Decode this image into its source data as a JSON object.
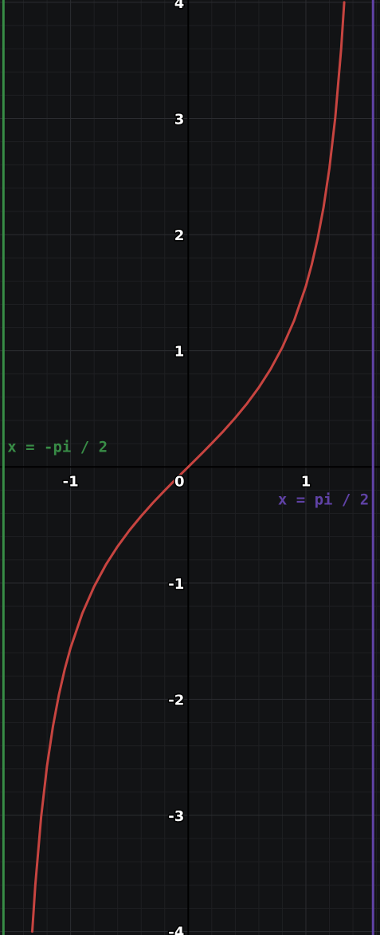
{
  "chart_data": {
    "type": "line",
    "title": "",
    "xlabel": "",
    "ylabel": "",
    "xlim": [
      -1.6,
      1.63
    ],
    "ylim": [
      -4.03,
      4.02
    ],
    "grid": true,
    "x_ticks": [
      {
        "value": -1,
        "label": "-1"
      },
      {
        "value": 1,
        "label": "1"
      }
    ],
    "y_ticks": [
      {
        "value": 4,
        "label": "4"
      },
      {
        "value": 3,
        "label": "3"
      },
      {
        "value": 2,
        "label": "2"
      },
      {
        "value": 1,
        "label": "1"
      },
      {
        "value": -1,
        "label": "-1"
      },
      {
        "value": -2,
        "label": "-2"
      },
      {
        "value": -3,
        "label": "-3"
      },
      {
        "value": -4,
        "label": "-4"
      }
    ],
    "origin_label": "0",
    "minor_grid_step": 0.2,
    "series": [
      {
        "color": "#c74440",
        "x": [
          -1.3258,
          -1.3,
          -1.25,
          -1.2,
          -1.15,
          -1.1,
          -1.05,
          -1.0,
          -0.9,
          -0.8,
          -0.7,
          -0.6,
          -0.5,
          -0.4,
          -0.3,
          -0.2,
          -0.1,
          0.0,
          0.1,
          0.2,
          0.3,
          0.4,
          0.5,
          0.6,
          0.7,
          0.8,
          0.9,
          1.0,
          1.05,
          1.1,
          1.15,
          1.2,
          1.25,
          1.3,
          1.3258
        ],
        "y": [
          -4.0,
          -3.602,
          -3.01,
          -2.572,
          -2.234,
          -1.965,
          -1.743,
          -1.557,
          -1.26,
          -1.03,
          -0.842,
          -0.684,
          -0.546,
          -0.423,
          -0.309,
          -0.203,
          -0.1,
          0.0,
          0.1,
          0.203,
          0.309,
          0.423,
          0.546,
          0.684,
          0.842,
          1.03,
          1.26,
          1.557,
          1.743,
          1.965,
          2.234,
          2.572,
          3.01,
          3.602,
          4.0
        ]
      }
    ],
    "asymptotes": [
      {
        "x": -1.5708,
        "label": "x = -pi / 2",
        "color": "#388c46"
      },
      {
        "x": 1.5708,
        "label": "x = pi / 2",
        "color": "#6042a6"
      }
    ]
  }
}
